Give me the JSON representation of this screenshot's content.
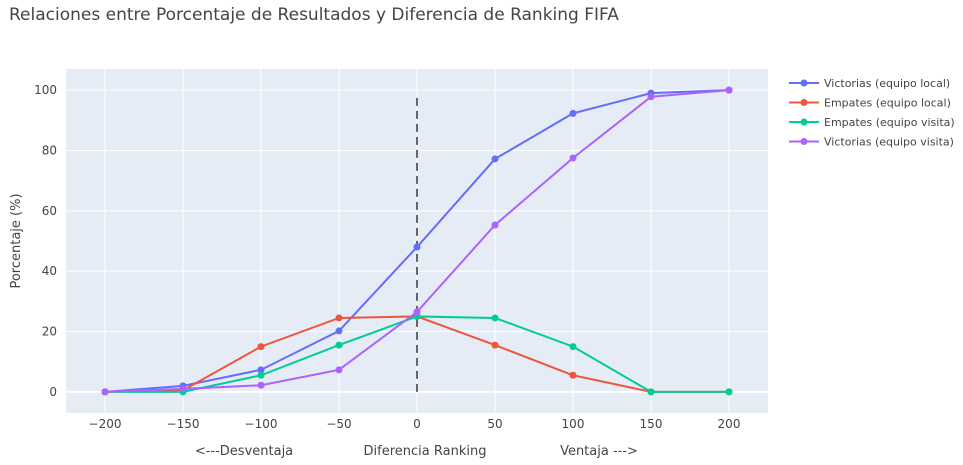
{
  "chart_data": {
    "type": "line",
    "title": "Relaciones entre Porcentaje de Resultados y Diferencia de Ranking FIFA",
    "xlabel": "Diferencia Ranking",
    "xlabel_left": "<---Desventaja",
    "xlabel_right": "Ventaja --->",
    "ylabel": "Porcentaje (%)",
    "x": [
      -200,
      -150,
      -100,
      -50,
      0,
      50,
      100,
      150,
      200
    ],
    "xticks": [
      -200,
      -150,
      -100,
      -50,
      0,
      50,
      100,
      150,
      200
    ],
    "yticks": [
      0,
      20,
      40,
      60,
      80,
      100
    ],
    "xlim": [
      -225,
      225
    ],
    "ylim": [
      -7,
      107
    ],
    "grid": true,
    "legend_position": "top-right",
    "vline": {
      "x": 0,
      "y0": 0,
      "y1": 99,
      "style": "dashed",
      "color": "#666666"
    },
    "plot_bg": "#e5ecf6",
    "series": [
      {
        "name": "Victorias (equipo local)",
        "color": "#636efa",
        "values": [
          0,
          2,
          7.3,
          20.2,
          48,
          77.2,
          92.3,
          99,
          100
        ]
      },
      {
        "name": "Empates (equipo local)",
        "color": "#ef553b",
        "values": [
          0,
          0.5,
          15,
          24.5,
          25,
          15.5,
          5.5,
          0,
          0
        ]
      },
      {
        "name": "Empates (equipo visita)",
        "color": "#00cc96",
        "values": [
          0,
          0,
          5.5,
          15.5,
          25,
          24.5,
          15,
          0,
          0
        ]
      },
      {
        "name": "Victorias (equipo visita)",
        "color": "#ab63fa",
        "values": [
          0,
          1,
          2.2,
          7.3,
          26.5,
          55.3,
          77.5,
          97.8,
          100
        ]
      }
    ]
  }
}
